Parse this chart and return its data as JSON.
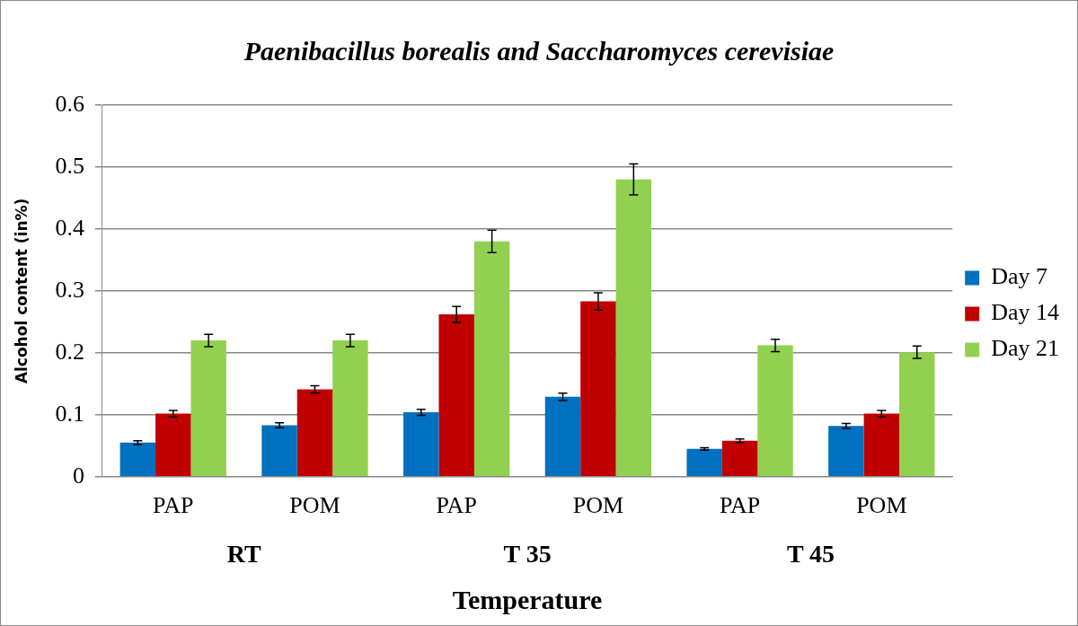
{
  "chart_data": {
    "type": "bar",
    "title": "Paenibacillus borealis and Saccharomyces cerevisiae",
    "xlabel": "Temperature",
    "ylabel": "Alcohol content (in%)",
    "categories": [
      "PAP",
      "POM",
      "PAP",
      "POM",
      "PAP",
      "POM"
    ],
    "annotations": [
      "RT",
      "T 35",
      "T 45"
    ],
    "series": [
      {
        "name": "Day 7",
        "color": "#0070c0",
        "values": [
          0.055,
          0.083,
          0.104,
          0.129,
          0.045,
          0.082
        ],
        "errors": [
          0.003,
          0.004,
          0.005,
          0.006,
          0.002,
          0.004
        ]
      },
      {
        "name": "Day 14",
        "color": "#c00000",
        "values": [
          0.102,
          0.141,
          0.262,
          0.283,
          0.058,
          0.102
        ],
        "errors": [
          0.005,
          0.006,
          0.013,
          0.014,
          0.003,
          0.005
        ]
      },
      {
        "name": "Day 21",
        "color": "#92d050",
        "values": [
          0.22,
          0.22,
          0.38,
          0.48,
          0.212,
          0.201
        ],
        "errors": [
          0.01,
          0.01,
          0.018,
          0.025,
          0.01,
          0.01
        ]
      }
    ],
    "ylim": [
      0,
      0.6
    ],
    "yticks": [
      0,
      0.1,
      0.2,
      0.3,
      0.4,
      0.5,
      0.6
    ],
    "grid": "y",
    "legend": "right"
  }
}
